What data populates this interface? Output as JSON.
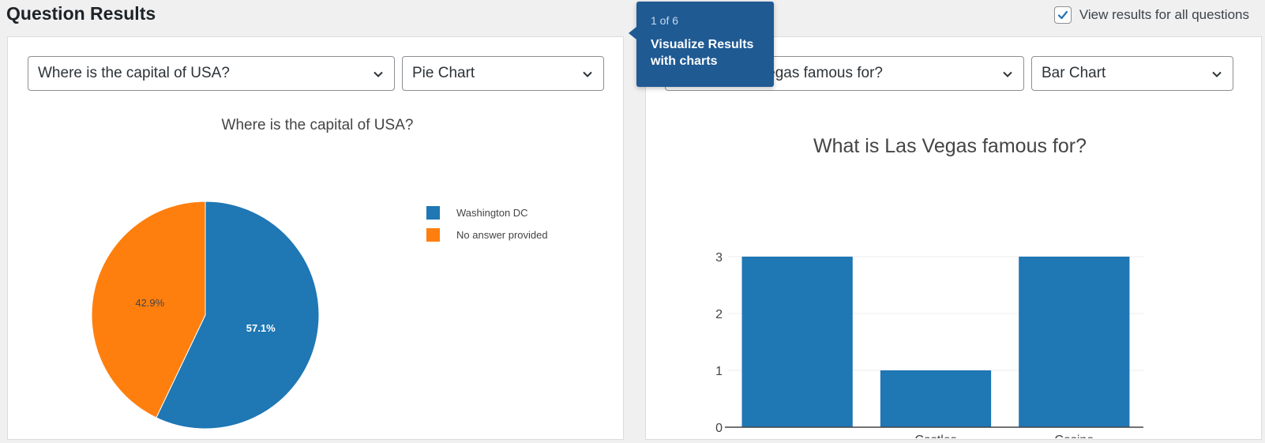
{
  "header": {
    "title": "Question Results",
    "view_all_label": "View results for all questions",
    "view_all_checked": true
  },
  "tooltip": {
    "step": "1 of 6",
    "message": "Visualize Results with charts"
  },
  "panels": [
    {
      "question_select": "Where is the capital of USA?",
      "chart_type_select": "Pie Chart"
    },
    {
      "question_select": "What is Las Vegas famous for?",
      "chart_type_select": "Bar Chart"
    }
  ],
  "colors": {
    "accent": "#2271b1",
    "pie_blue": "#1f77b4",
    "pie_orange": "#ff7f0e",
    "bar": "#1f77b4",
    "tooltip_bg": "#1f5a93"
  },
  "chart_data": [
    {
      "type": "pie",
      "title": "Where is the capital of USA?",
      "labels": [
        "Washington DC",
        "No answer provided"
      ],
      "values": [
        57.1,
        42.9
      ],
      "value_labels": [
        "57.1%",
        "42.9%"
      ],
      "legend_position": "right"
    },
    {
      "type": "bar",
      "title": "What is Las Vegas famous for?",
      "categories": [
        "",
        "Castles",
        "Casino"
      ],
      "values": [
        3,
        1,
        3
      ],
      "ylim": [
        0,
        3
      ],
      "yticks": [
        "0",
        "1",
        "2",
        "3"
      ],
      "grid": true
    }
  ]
}
